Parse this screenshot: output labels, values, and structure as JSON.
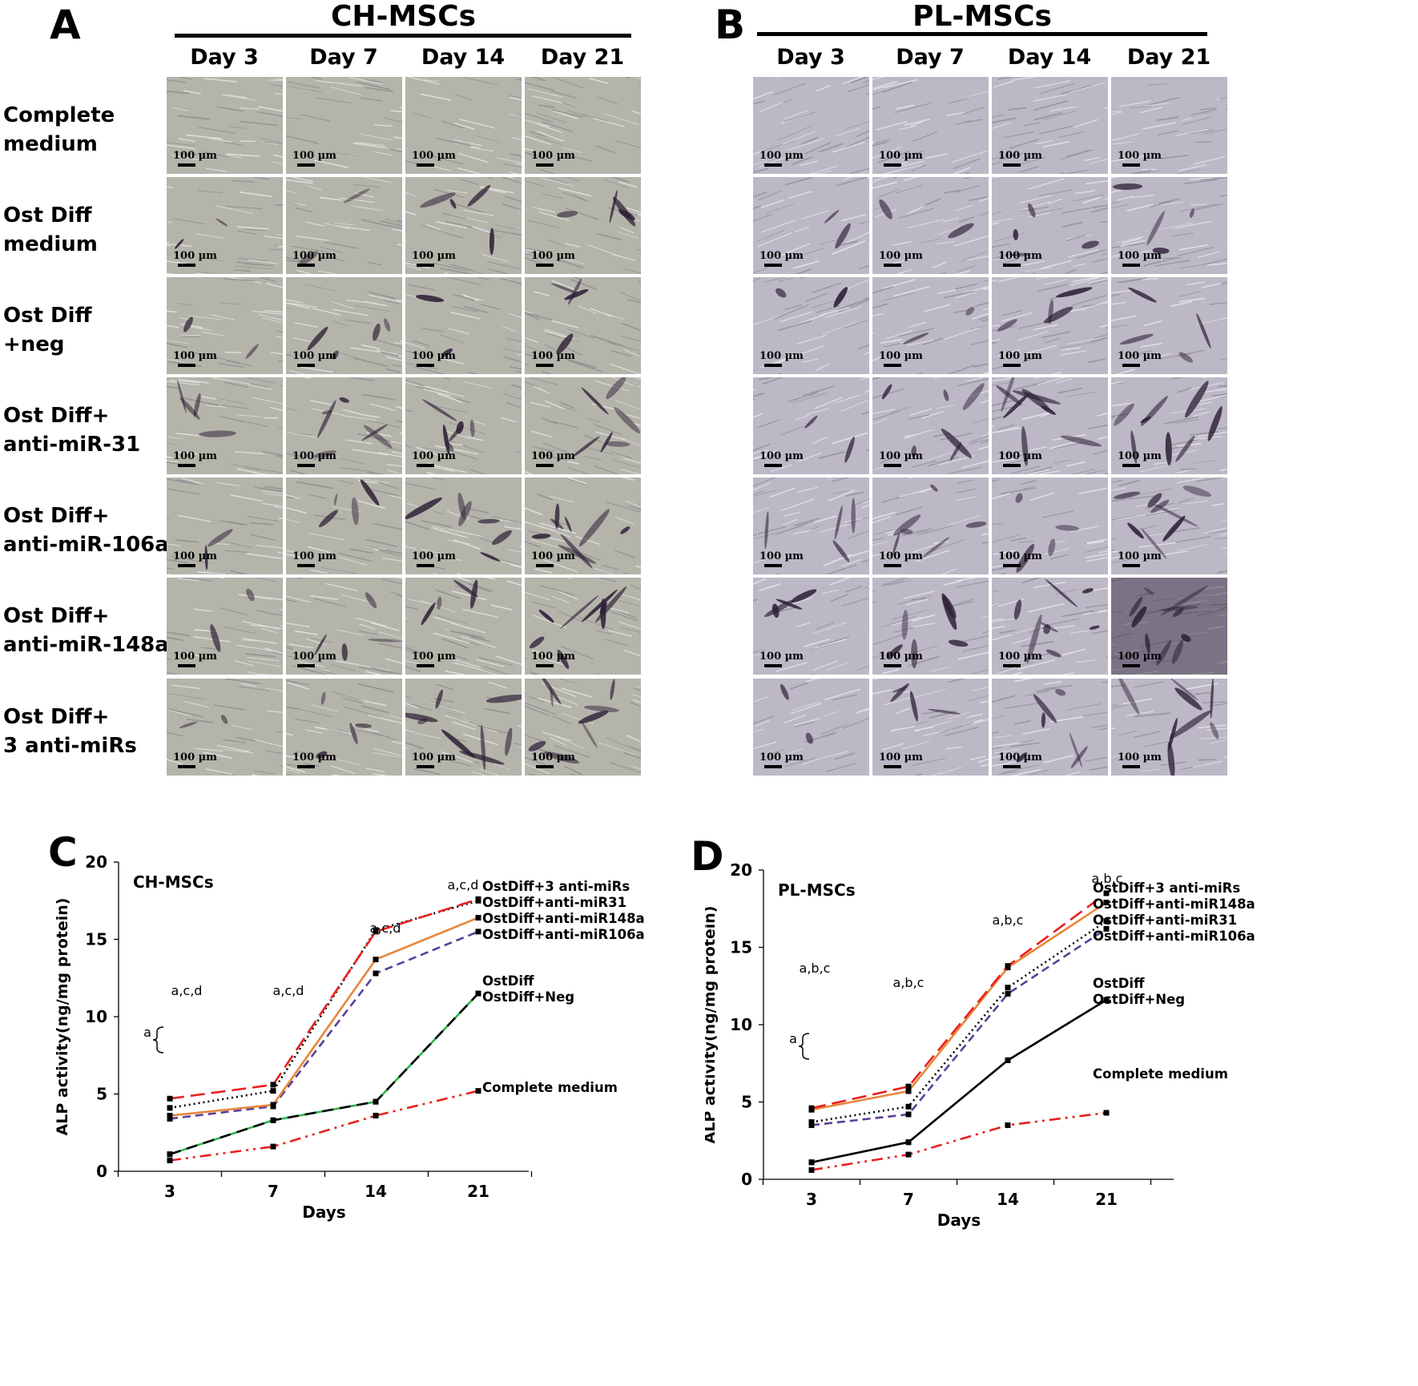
{
  "panels": {
    "A": {
      "letter": "A",
      "title": "CH-MSCs"
    },
    "B": {
      "letter": "B",
      "title": "PL-MSCs"
    }
  },
  "days": [
    "Day 3",
    "Day 7",
    "Day 14",
    "Day 21"
  ],
  "rows": [
    "Complete\nmedium",
    "Ost Diff\nmedium",
    "Ost Diff\n+neg",
    "Ost Diff+\nanti-miR-31",
    "Ost Diff+\nanti-miR-106a",
    "Ost Diff+\nanti-miR-148a",
    "Ost Diff+\n3 anti-miRs"
  ],
  "scale_label": "100 µm",
  "colors": {
    "ch_tile": "#b4b4ab",
    "pl_tile": "#bcb8c6",
    "stain": "#2d1f35",
    "red": "#e8211f",
    "orange": "#e6873a",
    "purple": "#5b3f9a",
    "green": "#2db54a",
    "black": "#000000"
  },
  "stain_intensity": {
    "CH": [
      [
        0,
        0,
        0,
        0
      ],
      [
        1,
        1,
        2,
        2
      ],
      [
        1,
        2,
        1,
        2
      ],
      [
        2,
        3,
        3,
        3
      ],
      [
        1,
        2,
        3,
        4
      ],
      [
        1,
        2,
        2,
        4
      ],
      [
        1,
        2,
        4,
        4
      ]
    ],
    "PL": [
      [
        0,
        0,
        0,
        0
      ],
      [
        1,
        1,
        2,
        2
      ],
      [
        1,
        1,
        2,
        2
      ],
      [
        1,
        3,
        4,
        4
      ],
      [
        2,
        3,
        2,
        4
      ],
      [
        2,
        3,
        4,
        5
      ],
      [
        1,
        2,
        3,
        4
      ]
    ]
  },
  "chart_data": [
    {
      "panel_letter": "C",
      "type": "line",
      "title": "CH-MSCs",
      "xlabel": "Days",
      "ylabel": "ALP activity(ng/mg  protein)",
      "categories": [
        "3",
        "7",
        "14",
        "21"
      ],
      "ylim": [
        0,
        20
      ],
      "yticks": [
        0,
        5,
        10,
        15,
        20
      ],
      "series": [
        {
          "name": "OstDiff+3 anti-miRs",
          "values": [
            4.7,
            5.6,
            15.5,
            17.6
          ],
          "color": "#e8211f",
          "dash": "18,8"
        },
        {
          "name": "OstDiff+anti-miR31",
          "values": [
            4.1,
            5.2,
            15.6,
            17.5
          ],
          "color": "#000000",
          "dash": "2,4"
        },
        {
          "name": "OstDiff+anti-miR148a",
          "values": [
            3.6,
            4.3,
            13.7,
            16.4
          ],
          "color": "#e6873a",
          "dash": ""
        },
        {
          "name": "OstDiff+anti-miR106a",
          "values": [
            3.4,
            4.2,
            12.8,
            15.5
          ],
          "color": "#5b3f9a",
          "dash": "10,6"
        },
        {
          "name": "OstDiff",
          "values": [
            1.1,
            3.3,
            4.5,
            11.5
          ],
          "color": "#000000",
          "dash": "14,8"
        },
        {
          "name": "OstDiff+Neg",
          "values": [
            1.1,
            3.3,
            4.5,
            11.5
          ],
          "color": "#2db54a",
          "dash": ""
        },
        {
          "name": "Complete medium",
          "values": [
            0.7,
            1.6,
            3.6,
            5.2
          ],
          "color": "#e8211f",
          "dash": "14,6,3,6,3,6"
        }
      ],
      "annotations": [
        {
          "x": "3",
          "text": "a,c,d"
        },
        {
          "x": "7",
          "text": "a,c,d"
        },
        {
          "x": "14",
          "text": "a,c,d"
        },
        {
          "x": "21",
          "text": "a,c,d"
        },
        {
          "x": "3",
          "text": "a"
        }
      ]
    },
    {
      "panel_letter": "D",
      "type": "line",
      "title": "PL-MSCs",
      "xlabel": "Days",
      "ylabel": "ALP activity(ng/mg  protein)",
      "categories": [
        "3",
        "7",
        "14",
        "21"
      ],
      "ylim": [
        0,
        20
      ],
      "yticks": [
        0,
        5,
        10,
        15,
        20
      ],
      "series": [
        {
          "name": "OstDiff+3 anti-miRs",
          "values": [
            4.6,
            6.0,
            13.8,
            18.5
          ],
          "color": "#e8211f",
          "dash": "18,8"
        },
        {
          "name": "OstDiff+anti-miR148a",
          "values": [
            4.5,
            5.7,
            13.7,
            17.9
          ],
          "color": "#e6873a",
          "dash": ""
        },
        {
          "name": "OstDiff+anti-miR31",
          "values": [
            3.7,
            4.7,
            12.4,
            16.7
          ],
          "color": "#000000",
          "dash": "2,4"
        },
        {
          "name": "OstDiff+anti-miR106a",
          "values": [
            3.5,
            4.2,
            12.0,
            16.2
          ],
          "color": "#5b3f9a",
          "dash": "10,6"
        },
        {
          "name": "OstDiff",
          "values": [
            1.1,
            2.4,
            7.7,
            11.6
          ],
          "color": "#000000",
          "dash": ""
        },
        {
          "name": "OstDiff+Neg",
          "values": [
            1.1,
            2.4,
            7.7,
            11.6
          ],
          "color": "#2db54a",
          "dash": "6,10"
        },
        {
          "name": "Complete medium",
          "values": [
            0.6,
            1.6,
            3.5,
            4.3
          ],
          "color": "#e8211f",
          "dash": "14,6,3,6,3,6"
        }
      ],
      "annotations": [
        {
          "x": "3",
          "text": "a,b,c"
        },
        {
          "x": "7",
          "text": "a,b,c"
        },
        {
          "x": "14",
          "text": "a,b,c"
        },
        {
          "x": "21",
          "text": "a,b,c"
        },
        {
          "x": "3",
          "text": "a"
        }
      ]
    }
  ]
}
